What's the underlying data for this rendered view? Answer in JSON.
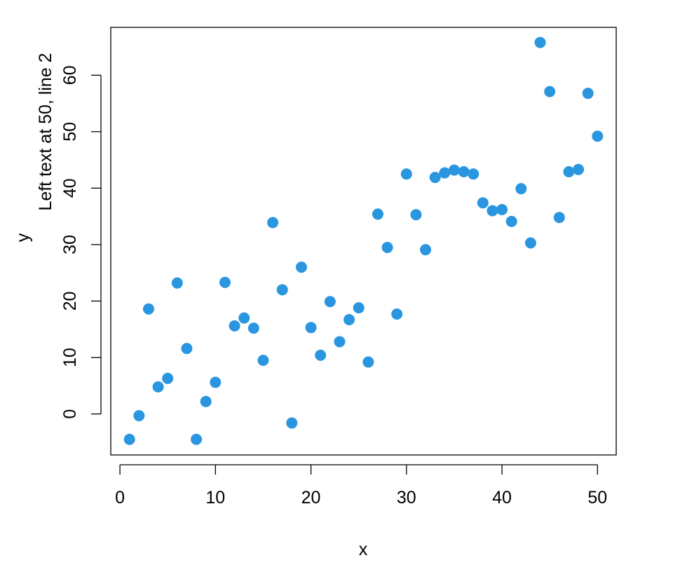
{
  "chart_data": {
    "type": "scatter",
    "xlabel": "x",
    "ylabel": "y",
    "margin_text": "Left text at 50, line 2",
    "xlim": [
      -0.96,
      51.96
    ],
    "ylim": [
      -7.26,
      68.48
    ],
    "x_ticks": [
      0,
      10,
      20,
      30,
      40,
      50
    ],
    "y_ticks": [
      0,
      10,
      20,
      30,
      40,
      50,
      60
    ],
    "grid": false,
    "point_color": "#2A96E0",
    "series": [
      {
        "x": [
          1,
          2,
          3,
          4,
          5,
          6,
          7,
          8,
          9,
          10,
          11,
          12,
          13,
          14,
          15,
          16,
          17,
          18,
          19,
          20,
          21,
          22,
          23,
          24,
          25,
          26,
          27,
          28,
          29,
          30,
          31,
          32,
          33,
          34,
          35,
          36,
          37,
          38,
          39,
          40,
          41,
          42,
          43,
          44,
          45,
          46,
          47,
          48,
          49,
          50
        ],
        "y": [
          -4.5,
          -0.3,
          18.6,
          4.8,
          6.3,
          23.2,
          11.6,
          -4.5,
          2.2,
          5.6,
          23.3,
          15.6,
          17.0,
          15.2,
          9.5,
          33.9,
          22.0,
          -1.6,
          26.0,
          15.3,
          10.4,
          19.9,
          12.8,
          16.7,
          18.8,
          9.2,
          35.4,
          29.5,
          17.7,
          42.5,
          35.3,
          29.1,
          41.9,
          42.7,
          43.2,
          42.9,
          42.5,
          37.4,
          36.0,
          36.2,
          34.1,
          39.9,
          30.3,
          65.8,
          57.1,
          34.8,
          42.9,
          43.3,
          56.8,
          49.2
        ]
      }
    ]
  }
}
